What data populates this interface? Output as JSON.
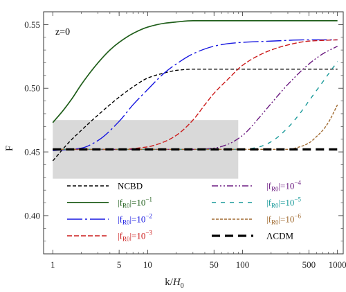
{
  "chart_data": {
    "type": "line",
    "annotation": "z=0",
    "xlabel": {
      "text": "k/",
      "italic": "H",
      "sub": "0"
    },
    "ylabel": "F",
    "xscale": "log",
    "xlim": [
      0.8,
      1150
    ],
    "ylim": [
      0.37,
      0.56
    ],
    "x_ticks": [
      1,
      5,
      10,
      50,
      100,
      500,
      1000
    ],
    "x_tick_labels": [
      "1",
      "5",
      "10",
      "50",
      "100",
      "500",
      "1000"
    ],
    "y_ticks": [
      0.4,
      0.45,
      0.5,
      0.55
    ],
    "y_tick_labels": [
      "0.40",
      "0.45",
      "0.50",
      "0.55"
    ],
    "grid": false,
    "shaded_region": {
      "x": [
        1,
        90
      ],
      "y": [
        0.429,
        0.475
      ],
      "color": "#d9d9d9"
    },
    "legend_placement": "lower-center",
    "series": [
      {
        "name": "NCBD",
        "label_main": "NCBD",
        "color": "#000000",
        "style": "dash-short",
        "x": [
          1,
          1.5,
          2,
          3,
          5,
          7,
          10,
          15,
          20,
          30,
          50,
          100,
          300,
          1000
        ],
        "y": [
          0.443,
          0.458,
          0.467,
          0.479,
          0.493,
          0.501,
          0.508,
          0.512,
          0.514,
          0.515,
          0.515,
          0.515,
          0.515,
          0.515
        ]
      },
      {
        "name": "|fR0|=10^-1",
        "label_main": "|f",
        "label_sub": "R0",
        "label_tail": "|=10",
        "label_sup": "−1",
        "color": "#1f5e1a",
        "style": "solid",
        "x": [
          1,
          1.3,
          1.6,
          2,
          3,
          4,
          5,
          7,
          10,
          15,
          20,
          30,
          50,
          100,
          300,
          1000
        ],
        "y": [
          0.473,
          0.483,
          0.492,
          0.503,
          0.52,
          0.53,
          0.536,
          0.543,
          0.548,
          0.551,
          0.552,
          0.553,
          0.553,
          0.553,
          0.553,
          0.553
        ]
      },
      {
        "name": "|fR0|=10^-2",
        "label_main": "|f",
        "label_sub": "R0",
        "label_tail": "|=10",
        "label_sup": "−2",
        "color": "#1515e0",
        "style": "long-dash",
        "x": [
          1,
          2,
          3,
          5,
          7,
          10,
          15,
          20,
          30,
          50,
          70,
          100,
          200,
          500,
          1000
        ],
        "y": [
          0.451,
          0.453,
          0.459,
          0.474,
          0.487,
          0.499,
          0.512,
          0.519,
          0.527,
          0.533,
          0.535,
          0.536,
          0.537,
          0.538,
          0.538
        ]
      },
      {
        "name": "|fR0|=10^-3",
        "label_main": "|f",
        "label_sub": "R0",
        "label_tail": "|=10",
        "label_sup": "−3",
        "color": "#cc1a1a",
        "style": "dash-medium",
        "x": [
          1,
          5,
          10,
          15,
          20,
          30,
          40,
          50,
          70,
          100,
          150,
          200,
          300,
          500,
          1000
        ],
        "y": [
          0.452,
          0.452,
          0.454,
          0.458,
          0.463,
          0.475,
          0.487,
          0.496,
          0.507,
          0.518,
          0.526,
          0.53,
          0.534,
          0.537,
          0.538
        ]
      },
      {
        "name": "|fR0|=10^-4",
        "label_main": "|f",
        "label_sub": "R0",
        "label_tail": "|=10",
        "label_sup": "−4",
        "color": "#6b1a80",
        "style": "dash-dot-dot",
        "x": [
          1,
          30,
          50,
          70,
          100,
          150,
          200,
          300,
          500,
          700,
          1000
        ],
        "y": [
          0.452,
          0.452,
          0.453,
          0.456,
          0.463,
          0.477,
          0.488,
          0.503,
          0.519,
          0.527,
          0.533
        ]
      },
      {
        "name": "|fR0|=10^-5",
        "label_main": "|f",
        "label_sub": "R0",
        "label_tail": "|=10",
        "label_sup": "−5",
        "color": "#1a9a9a",
        "style": "dash-sparse",
        "x": [
          1,
          100,
          150,
          200,
          300,
          400,
          500,
          700,
          1000
        ],
        "y": [
          0.452,
          0.452,
          0.454,
          0.458,
          0.469,
          0.48,
          0.49,
          0.505,
          0.521
        ]
      },
      {
        "name": "|fR0|=10^-6",
        "label_main": "|f",
        "label_sub": "R0",
        "label_tail": "|=10",
        "label_sup": "−6",
        "color": "#a06a30",
        "style": "dash-fine",
        "x": [
          1,
          300,
          400,
          500,
          600,
          700,
          800,
          1000
        ],
        "y": [
          0.452,
          0.452,
          0.454,
          0.457,
          0.462,
          0.467,
          0.473,
          0.487
        ]
      },
      {
        "name": "ΛCDM",
        "label_main": "ΛCDM",
        "color": "#000000",
        "style": "thick-dash",
        "x": [
          1,
          1000
        ],
        "y": [
          0.452,
          0.452
        ]
      }
    ],
    "legend_order": [
      0,
      4,
      1,
      5,
      2,
      6,
      3,
      7
    ]
  }
}
